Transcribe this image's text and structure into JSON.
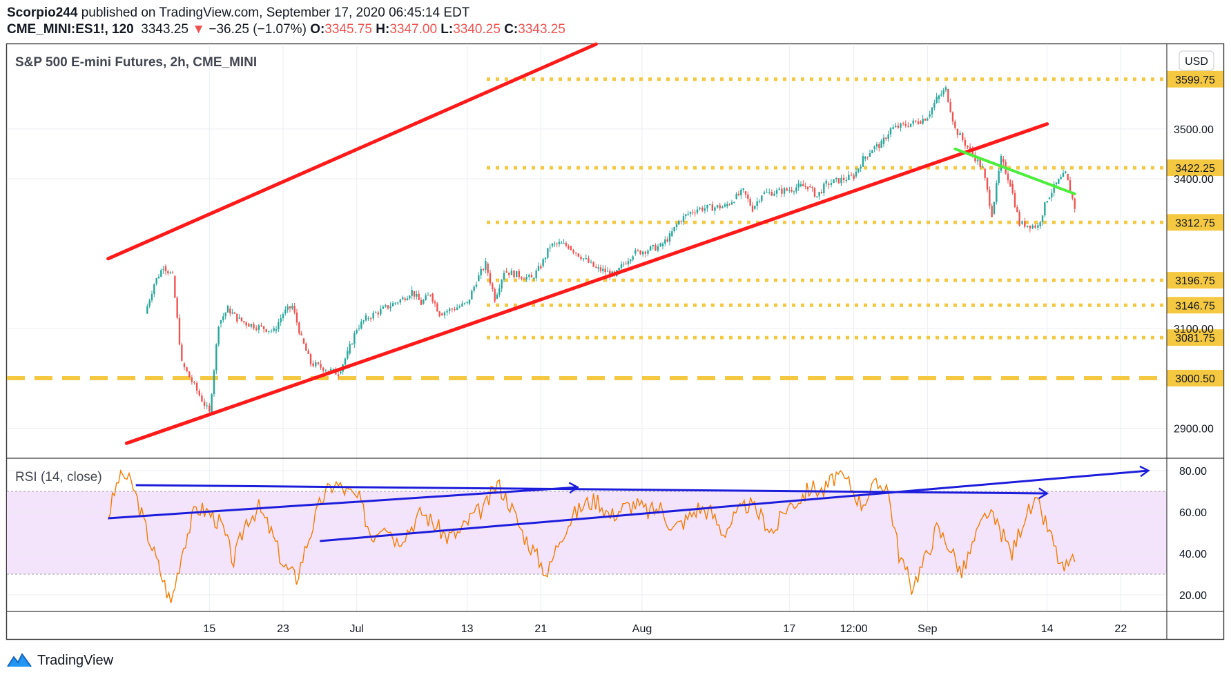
{
  "header": {
    "author": "Scorpio244",
    "published_text": "published on TradingView.com, September 17, 2020 06:45:14 EDT",
    "symbol": "CME_MINI:ES1!, 120",
    "last": "3343.25",
    "change_arrow": "▼",
    "change": "−36.25 (−1.07%)",
    "o_label": "O:",
    "o_value": "3345.75",
    "h_label": "H:",
    "h_value": "3347.00",
    "l_label": "L:",
    "l_value": "3340.25",
    "c_label": "C:",
    "c_value": "3343.25"
  },
  "colors": {
    "up": "#26a69a",
    "down": "#ef5350",
    "trend_red": "#ff1a1a",
    "trend_green": "#4cee3c",
    "level_gold": "#f5c842",
    "rsi_line": "#f57c00",
    "rsi_band": "#f3e3fb",
    "rsi_arrows": "#1c1cdb"
  },
  "chart_data": [
    {
      "type": "candlestick",
      "title": "S&P 500 E-mini Futures, 2h, CME_MINI",
      "currency": "USD",
      "ylim": [
        2840,
        3670
      ],
      "y_ticks": [
        "2900.00",
        "3100.00",
        "3400.00",
        "3500.00"
      ],
      "x_ticks": [
        "15",
        "23",
        "Jul",
        "13",
        "21",
        "Aug",
        "17",
        "12:00",
        "Sep",
        "14",
        "22"
      ],
      "grid": true,
      "price_path": [
        {
          "date": "2020-06-08",
          "close": 3130
        },
        {
          "date": "2020-06-09",
          "close": 3190
        },
        {
          "date": "2020-06-10",
          "close": 3225
        },
        {
          "date": "2020-06-11",
          "close": 3205
        },
        {
          "date": "2020-06-12",
          "close": 3030
        },
        {
          "date": "2020-06-15",
          "close": 2930
        },
        {
          "date": "2020-06-16",
          "close": 3110
        },
        {
          "date": "2020-06-17",
          "close": 3140
        },
        {
          "date": "2020-06-18",
          "close": 3120
        },
        {
          "date": "2020-06-19",
          "close": 3110
        },
        {
          "date": "2020-06-22",
          "close": 3095
        },
        {
          "date": "2020-06-23",
          "close": 3130
        },
        {
          "date": "2020-06-24",
          "close": 3145
        },
        {
          "date": "2020-06-25",
          "close": 3080
        },
        {
          "date": "2020-06-26",
          "close": 3030
        },
        {
          "date": "2020-06-29",
          "close": 3010
        },
        {
          "date": "2020-06-30",
          "close": 3050
        },
        {
          "date": "2020-07-01",
          "close": 3100
        },
        {
          "date": "2020-07-02",
          "close": 3120
        },
        {
          "date": "2020-07-06",
          "close": 3160
        },
        {
          "date": "2020-07-07",
          "close": 3175
        },
        {
          "date": "2020-07-08",
          "close": 3150
        },
        {
          "date": "2020-07-09",
          "close": 3170
        },
        {
          "date": "2020-07-10",
          "close": 3130
        },
        {
          "date": "2020-07-13",
          "close": 3150
        },
        {
          "date": "2020-07-14",
          "close": 3195
        },
        {
          "date": "2020-07-15",
          "close": 3230
        },
        {
          "date": "2020-07-16",
          "close": 3160
        },
        {
          "date": "2020-07-17",
          "close": 3215
        },
        {
          "date": "2020-07-20",
          "close": 3200
        },
        {
          "date": "2020-07-21",
          "close": 3225
        },
        {
          "date": "2020-07-22",
          "close": 3265
        },
        {
          "date": "2020-07-23",
          "close": 3270
        },
        {
          "date": "2020-07-24",
          "close": 3265
        },
        {
          "date": "2020-07-27",
          "close": 3220
        },
        {
          "date": "2020-07-28",
          "close": 3215
        },
        {
          "date": "2020-07-29",
          "close": 3205
        },
        {
          "date": "2020-07-30",
          "close": 3230
        },
        {
          "date": "2020-07-31",
          "close": 3250
        },
        {
          "date": "2020-08-03",
          "close": 3265
        },
        {
          "date": "2020-08-04",
          "close": 3285
        },
        {
          "date": "2020-08-05",
          "close": 3315
        },
        {
          "date": "2020-08-06",
          "close": 3330
        },
        {
          "date": "2020-08-07",
          "close": 3340
        },
        {
          "date": "2020-08-10",
          "close": 3345
        },
        {
          "date": "2020-08-11",
          "close": 3360
        },
        {
          "date": "2020-08-12",
          "close": 3375
        },
        {
          "date": "2020-08-13",
          "close": 3340
        },
        {
          "date": "2020-08-14",
          "close": 3370
        },
        {
          "date": "2020-08-17",
          "close": 3378
        },
        {
          "date": "2020-08-18",
          "close": 3385
        },
        {
          "date": "2020-08-19",
          "close": 3385
        },
        {
          "date": "2020-08-20",
          "close": 3365
        },
        {
          "date": "2020-08-21",
          "close": 3390
        },
        {
          "date": "2020-08-24",
          "close": 3405
        },
        {
          "date": "2020-08-25",
          "close": 3440
        },
        {
          "date": "2020-08-26",
          "close": 3460
        },
        {
          "date": "2020-08-27",
          "close": 3470
        },
        {
          "date": "2020-08-28",
          "close": 3500
        },
        {
          "date": "2020-08-31",
          "close": 3515
        },
        {
          "date": "2020-09-01",
          "close": 3525
        },
        {
          "date": "2020-09-02",
          "close": 3560
        },
        {
          "date": "2020-09-03",
          "close": 3580
        },
        {
          "date": "2020-09-04",
          "close": 3500
        },
        {
          "date": "2020-09-07",
          "close": 3420
        },
        {
          "date": "2020-09-08",
          "close": 3330
        },
        {
          "date": "2020-09-09",
          "close": 3440
        },
        {
          "date": "2020-09-10",
          "close": 3390
        },
        {
          "date": "2020-09-11",
          "close": 3310
        },
        {
          "date": "2020-09-13",
          "close": 3305
        },
        {
          "date": "2020-09-14",
          "close": 3360
        },
        {
          "date": "2020-09-15",
          "close": 3390
        },
        {
          "date": "2020-09-16",
          "close": 3410
        },
        {
          "date": "2020-09-17",
          "close": 3343
        }
      ],
      "price_labels": [
        {
          "value": 3599.75,
          "label": "3599.75",
          "style": "dotted"
        },
        {
          "value": 3422.25,
          "label": "3422.25",
          "style": "dotted"
        },
        {
          "value": 3312.75,
          "label": "3312.75",
          "style": "dotted"
        },
        {
          "value": 3196.75,
          "label": "3196.75",
          "style": "dotted"
        },
        {
          "value": 3146.75,
          "label": "3146.75",
          "style": "dotted"
        },
        {
          "value": 3081.75,
          "label": "3081.75",
          "style": "dotted"
        },
        {
          "value": 3000.5,
          "label": "3000.50",
          "style": "dashed"
        }
      ],
      "trend_lines": [
        {
          "color": "red",
          "from": {
            "date": "2020-06-04",
            "price": 3240
          },
          "to": {
            "date": "2020-07-27",
            "price": 3670
          }
        },
        {
          "color": "red",
          "from": {
            "date": "2020-06-06",
            "price": 2870
          },
          "to": {
            "date": "2020-09-14",
            "price": 3510
          }
        },
        {
          "color": "green",
          "from": {
            "date": "2020-09-04",
            "price": 3460
          },
          "to": {
            "date": "2020-09-17",
            "price": 3370
          }
        }
      ]
    },
    {
      "type": "line",
      "title": "RSI (14, close)",
      "ylim": [
        12,
        86
      ],
      "y_ticks": [
        "20.00",
        "40.00",
        "60.00",
        "80.00"
      ],
      "band": [
        30,
        70
      ],
      "series": [
        {
          "values": [
            58,
            80,
            72,
            52,
            34,
            16,
            44,
            62,
            60,
            54,
            36,
            56,
            62,
            50,
            34,
            28,
            48,
            66,
            74,
            70,
            66,
            48,
            56,
            46,
            52,
            60,
            54,
            48,
            50,
            58,
            62,
            74,
            64,
            50,
            40,
            30,
            48,
            58,
            64,
            66,
            58,
            62,
            64,
            60,
            62,
            52,
            56,
            62,
            60,
            50,
            58,
            64,
            58,
            50,
            62,
            66,
            72,
            70,
            78,
            74,
            64,
            72,
            74,
            40,
            24,
            36,
            52,
            44,
            30,
            46,
            60,
            52,
            40,
            58,
            64,
            50,
            32,
            36
          ]
        }
      ],
      "arrows": [
        {
          "from": {
            "date": "2020-06-04",
            "rsi": 57
          },
          "to": {
            "date": "2020-07-25",
            "rsi": 72
          }
        },
        {
          "from": {
            "date": "2020-06-07",
            "rsi": 73
          },
          "to": {
            "date": "2020-09-14",
            "rsi": 69
          }
        },
        {
          "from": {
            "date": "2020-06-27",
            "rsi": 46
          },
          "to": {
            "date": "2020-09-25",
            "rsi": 80
          }
        }
      ]
    }
  ],
  "footer": {
    "brand": "TradingView"
  }
}
